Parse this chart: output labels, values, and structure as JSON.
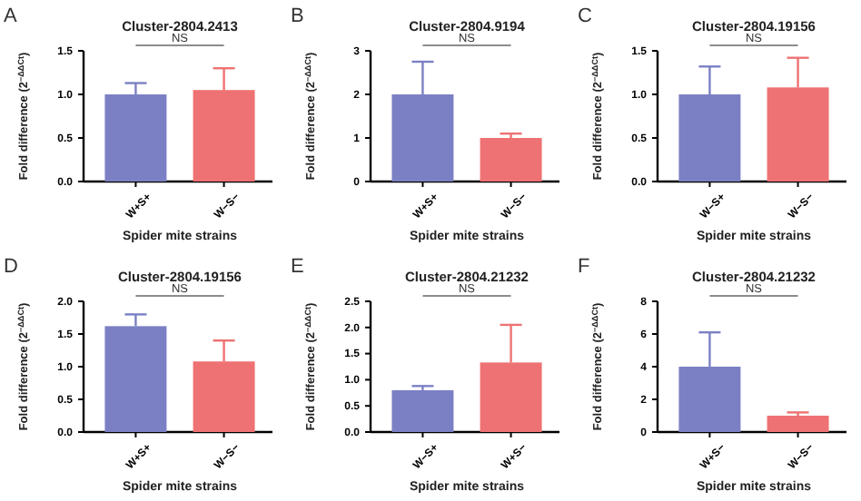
{
  "chart_data": [
    {
      "type": "bar",
      "title": "Cluster-2804.2413",
      "xlabel": "Spider mite strains",
      "ylabel": "Fold difference (2$^{−ΔΔCt}$)",
      "categories": [
        "W+S+",
        "W−S−"
      ],
      "values": [
        1.0,
        1.05
      ],
      "errors": [
        [
          1.0,
          1.13
        ],
        [
          1.05,
          1.3
        ]
      ],
      "colors": [
        "#7b80c4",
        "#ee7273"
      ],
      "ylim": [
        0,
        1.5
      ],
      "yticks": [
        {
          "value": 0,
          "label": "0.0"
        },
        {
          "value": 0.5,
          "label": "0.5"
        },
        {
          "value": 1,
          "label": "1.0"
        },
        {
          "value": 1.5,
          "label": "1.5"
        }
      ],
      "annotations": [
        "A",
        "NS"
      ]
    },
    {
      "type": "bar",
      "title": "Cluster-2804.9194",
      "xlabel": "Spider mite strains",
      "ylabel": "Fold difference (2$^{−ΔΔCt}$)",
      "categories": [
        "W+S+",
        "W−S−"
      ],
      "values": [
        2.0,
        1.0
      ],
      "errors": [
        [
          2.0,
          2.75
        ],
        [
          1.0,
          1.1
        ]
      ],
      "colors": [
        "#7b80c4",
        "#ee7273"
      ],
      "ylim": [
        0,
        3
      ],
      "yticks": [
        0,
        1,
        2,
        3
      ],
      "annotations": [
        "B",
        "NS"
      ]
    },
    {
      "type": "bar",
      "title": "Cluster-2804.19156",
      "xlabel": "Spider mite strains",
      "ylabel": "Fold difference (2$^{−ΔΔCt}$)",
      "categories": [
        "W−S+",
        "W−S−"
      ],
      "values": [
        1.0,
        1.08
      ],
      "errors": [
        [
          1.0,
          1.32
        ],
        [
          1.08,
          1.42
        ]
      ],
      "colors": [
        "#7b80c4",
        "#ee7273"
      ],
      "ylim": [
        0,
        1.5
      ],
      "yticks": [
        {
          "value": 0,
          "label": "0.0"
        },
        {
          "value": 0.5,
          "label": "0.5"
        },
        {
          "value": 1,
          "label": "1.0"
        },
        {
          "value": 1.5,
          "label": "1.5"
        }
      ],
      "annotations": [
        "C",
        "NS"
      ]
    },
    {
      "type": "bar",
      "title": "Cluster-2804.19156",
      "xlabel": "Spider mite strains",
      "ylabel": "Fold difference (2$^{−ΔΔCt}$)",
      "categories": [
        "W+S+",
        "W−S−"
      ],
      "values": [
        1.62,
        1.08
      ],
      "errors": [
        [
          1.62,
          1.8
        ],
        [
          1.08,
          1.4
        ]
      ],
      "colors": [
        "#7b80c4",
        "#ee7273"
      ],
      "ylim": [
        0,
        2
      ],
      "yticks": [
        {
          "value": 0,
          "label": "0.0"
        },
        {
          "value": 0.5,
          "label": "0.5"
        },
        {
          "value": 1,
          "label": "1.0"
        },
        {
          "value": 1.5,
          "label": "1.5"
        },
        {
          "value": 2,
          "label": "2.0"
        }
      ],
      "annotations": [
        "D",
        "NS"
      ]
    },
    {
      "type": "bar",
      "title": "Cluster-2804.21232",
      "xlabel": "Spider mite strains",
      "ylabel": "Fold difference (2$^{−ΔΔCt}$)",
      "categories": [
        "W−S+",
        "W+S−"
      ],
      "values": [
        0.8,
        1.33
      ],
      "errors": [
        [
          0.8,
          0.88
        ],
        [
          1.33,
          2.05
        ]
      ],
      "colors": [
        "#7b80c4",
        "#ee7273"
      ],
      "ylim": [
        0,
        2.5
      ],
      "yticks": [
        {
          "value": 0,
          "label": "0.0"
        },
        {
          "value": 0.5,
          "label": "0.5"
        },
        {
          "value": 1,
          "label": "1.0"
        },
        {
          "value": 1.5,
          "label": "1.5"
        },
        {
          "value": 2,
          "label": "2.0"
        },
        {
          "value": 2.5,
          "label": "2.5"
        }
      ],
      "annotations": [
        "E",
        "NS"
      ]
    },
    {
      "type": "bar",
      "title": "Cluster-2804.21232",
      "xlabel": "Spider mite strains",
      "ylabel": "Fold difference (2$^{−ΔΔCt}$)",
      "categories": [
        "W+S−",
        "W−S−"
      ],
      "values": [
        4.0,
        1.0
      ],
      "errors": [
        [
          4.0,
          6.1
        ],
        [
          1.0,
          1.2
        ]
      ],
      "colors": [
        "#7b80c4",
        "#ee7273"
      ],
      "ylim": [
        0,
        8
      ],
      "yticks": [
        0,
        2,
        4,
        6,
        8
      ],
      "annotations": [
        "F",
        "NS"
      ]
    }
  ]
}
